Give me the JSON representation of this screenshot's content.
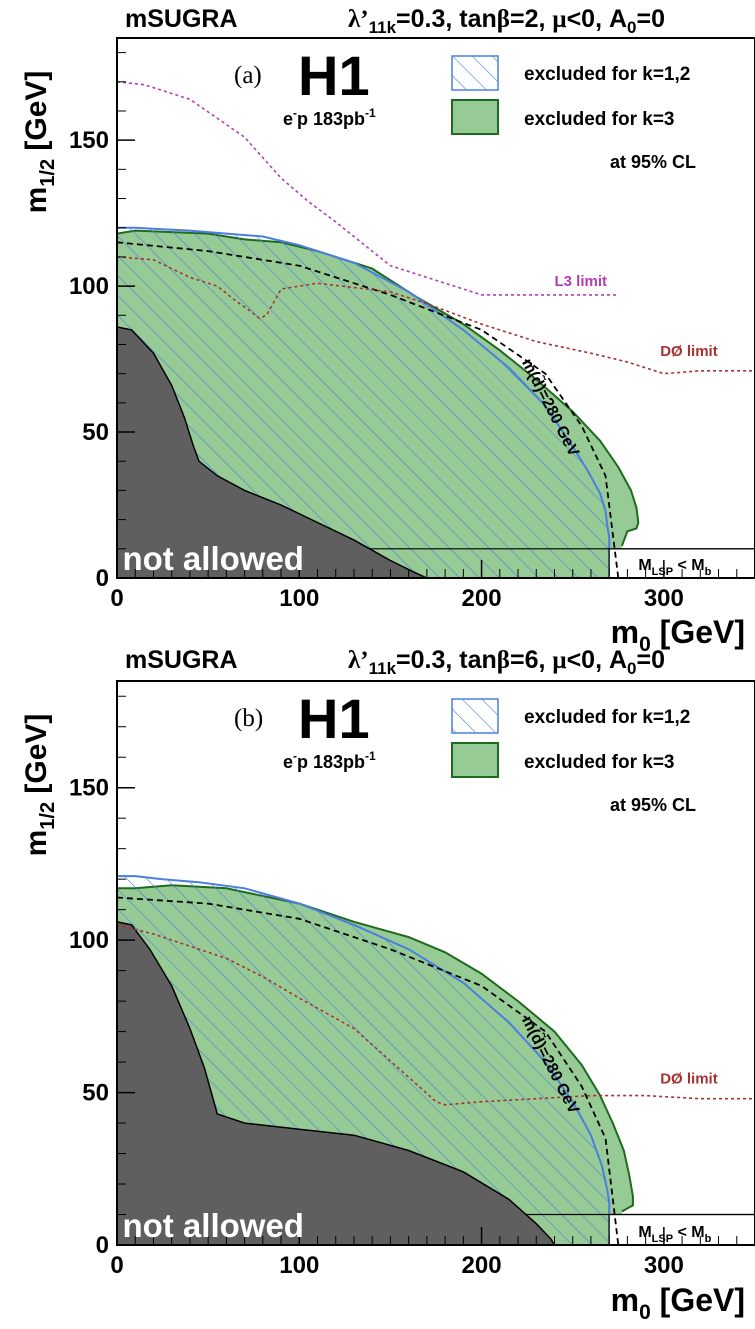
{
  "colors": {
    "excluded_k12": "#4a7fe0",
    "excluded_k3_fill": "#97cb95",
    "excluded_k3_line": "#1e6a1e",
    "not_allowed": "#5f5f5f",
    "l3_limit": "#b23eb2",
    "d0_limit": "#a83232",
    "squark_contour": "#000000"
  },
  "chart_data": [
    {
      "type": "area",
      "panel_label": "(a)",
      "scenario": "mSUGRA",
      "parameters_text": {
        "lambda": "λ’",
        "sub": "11k",
        "rest_a": "=0.3, tan",
        "beta": "β",
        "rest_b": "=2, ",
        "mu": "μ",
        "rest_c": "<0, A",
        "a0sub": "0",
        "rest_d": "=0"
      },
      "experiment": "H1",
      "dataset": {
        "prefix": "e",
        "sup": "-",
        "mid": "p 183pb",
        "sup2": "-1"
      },
      "xlabel": {
        "main": "m",
        "sub": "0",
        "rest": " [GeV]"
      },
      "ylabel": {
        "main": "m",
        "sub": "1/2",
        "rest": " [GeV]"
      },
      "xlim": [
        0,
        350
      ],
      "ylim": [
        0,
        185
      ],
      "xticks": [
        0,
        100,
        200,
        300
      ],
      "yticks": [
        0,
        50,
        100,
        150
      ],
      "xtick_labels": [
        "0",
        "100",
        "200",
        "300"
      ],
      "ytick_labels": [
        "0",
        "50",
        "100",
        "150"
      ],
      "legend": [
        {
          "label": "excluded for k=1,2",
          "style": "hatch"
        },
        {
          "label": "excluded for k=3",
          "style": "fill"
        },
        {
          "label": "at 95% CL",
          "style": "none"
        }
      ],
      "annotations": {
        "not_allowed": "not allowed",
        "lsp_box": {
          "m": "M",
          "lsp": "LSP",
          "lt": " < M",
          "b": "b"
        },
        "squark": "m(d̃)=280 GeV",
        "l3": "L3 limit",
        "d0": "DØ limit"
      },
      "series": [
        {
          "key": "k12",
          "x": [
            0,
            10,
            25,
            40,
            60,
            80,
            100,
            130,
            160,
            190,
            215,
            235,
            250,
            258,
            265,
            268,
            269,
            270,
            270
          ],
          "y": [
            120,
            120,
            119.5,
            119,
            118,
            117,
            114,
            108,
            98,
            85,
            72,
            59,
            45,
            37,
            29,
            23,
            18,
            14,
            0
          ]
        },
        {
          "key": "k3",
          "x": [
            0,
            10,
            30,
            50,
            70,
            90,
            110,
            140,
            165,
            190,
            210,
            230,
            250,
            265,
            275,
            282,
            285,
            286,
            285,
            280,
            277
          ],
          "y": [
            118,
            119,
            118.5,
            118,
            116,
            115,
            112,
            106,
            96,
            87,
            78,
            68,
            57,
            47,
            38,
            30,
            24,
            19,
            17,
            16,
            11
          ]
        },
        {
          "key": "not_allowed",
          "x": [
            0,
            8,
            20,
            30,
            37,
            42,
            45,
            55,
            70,
            90,
            110,
            130,
            150,
            163,
            170
          ],
          "y": [
            86,
            85,
            77,
            66,
            55,
            45,
            40,
            35,
            30,
            25,
            19,
            13,
            6,
            2,
            0
          ]
        },
        {
          "key": "l3",
          "x": [
            0,
            15,
            40,
            70,
            90,
            105,
            120,
            150,
            200,
            275
          ],
          "y": [
            170,
            169,
            164,
            151,
            137,
            129,
            122,
            107,
            97,
            97
          ]
        },
        {
          "key": "d0",
          "x": [
            0,
            20,
            40,
            55,
            65,
            72,
            78,
            82,
            90,
            110,
            150,
            170,
            200,
            230,
            260,
            280,
            300,
            320,
            350
          ],
          "y": [
            110,
            109,
            103,
            100,
            95,
            92,
            89,
            90,
            99,
            101,
            98,
            94,
            87,
            81,
            77,
            74,
            70,
            71,
            71
          ]
        },
        {
          "key": "squark",
          "x": [
            0,
            50,
            100,
            150,
            200,
            235,
            255,
            268,
            275
          ],
          "y": [
            115,
            112,
            107,
            97,
            85,
            70,
            52,
            35,
            0
          ]
        }
      ],
      "lsp_box_y": 10,
      "lsp_box_x": [
        270,
        350
      ]
    },
    {
      "type": "area",
      "panel_label": "(b)",
      "scenario": "mSUGRA",
      "parameters_text": {
        "lambda": "λ’",
        "sub": "11k",
        "rest_a": "=0.3, tan",
        "beta": "β",
        "rest_b": "=6, ",
        "mu": "μ",
        "rest_c": "<0, A",
        "a0sub": "0",
        "rest_d": "=0"
      },
      "experiment": "H1",
      "dataset": {
        "prefix": "e",
        "sup": "-",
        "mid": "p 183pb",
        "sup2": "-1"
      },
      "xlabel": {
        "main": "m",
        "sub": "0",
        "rest": " [GeV]"
      },
      "ylabel": {
        "main": "m",
        "sub": "1/2",
        "rest": " [GeV]"
      },
      "xlim": [
        0,
        350
      ],
      "ylim": [
        0,
        185
      ],
      "xticks": [
        0,
        100,
        200,
        300
      ],
      "yticks": [
        0,
        50,
        100,
        150
      ],
      "xtick_labels": [
        "0",
        "100",
        "200",
        "300"
      ],
      "ytick_labels": [
        "0",
        "50",
        "100",
        "150"
      ],
      "legend": [
        {
          "label": "excluded for k=1,2",
          "style": "hatch"
        },
        {
          "label": "excluded for k=3",
          "style": "fill"
        },
        {
          "label": "at 95% CL",
          "style": "none"
        }
      ],
      "annotations": {
        "not_allowed": "not allowed",
        "lsp_box": {
          "m": "M",
          "lsp": "LSP",
          "lt": " < M",
          "b": "b"
        },
        "squark": "m(d̃)=280 GeV",
        "d0": "DØ limit"
      },
      "series": [
        {
          "key": "k12",
          "x": [
            0,
            10,
            25,
            45,
            70,
            100,
            130,
            160,
            190,
            215,
            235,
            250,
            260,
            266,
            269,
            270,
            270
          ],
          "y": [
            121,
            121,
            120,
            119,
            117,
            112,
            105,
            97,
            86,
            73,
            60,
            47,
            36,
            26,
            18,
            14,
            0
          ]
        },
        {
          "key": "k3",
          "x": [
            0,
            10,
            30,
            60,
            100,
            130,
            160,
            180,
            200,
            220,
            240,
            255,
            265,
            272,
            278,
            281,
            283,
            283,
            280,
            277
          ],
          "y": [
            117,
            117,
            118,
            117,
            112,
            106,
            101,
            96,
            89,
            80,
            70,
            59,
            49,
            40,
            31,
            23,
            16,
            13,
            12,
            11
          ]
        },
        {
          "key": "not_allowed",
          "x": [
            0,
            8,
            18,
            30,
            40,
            48,
            55,
            70,
            100,
            130,
            160,
            190,
            215,
            230,
            238,
            240
          ],
          "y": [
            106,
            105,
            97,
            85,
            71,
            58,
            43,
            40,
            38,
            36,
            31,
            24,
            15,
            7,
            2,
            0
          ]
        },
        {
          "key": "d0",
          "x": [
            0,
            20,
            40,
            60,
            80,
            100,
            130,
            160,
            175,
            180,
            200,
            230,
            260,
            290,
            320,
            350
          ],
          "y": [
            105,
            102,
            98,
            94,
            88,
            81,
            71,
            55,
            47,
            46,
            47,
            48,
            49,
            49,
            48,
            48
          ]
        },
        {
          "key": "squark",
          "x": [
            0,
            50,
            100,
            150,
            200,
            235,
            255,
            268,
            275
          ],
          "y": [
            114,
            112,
            107,
            97,
            85,
            70,
            52,
            35,
            0
          ]
        }
      ],
      "lsp_box_y": 10,
      "lsp_box_x": [
        270,
        350
      ]
    }
  ]
}
